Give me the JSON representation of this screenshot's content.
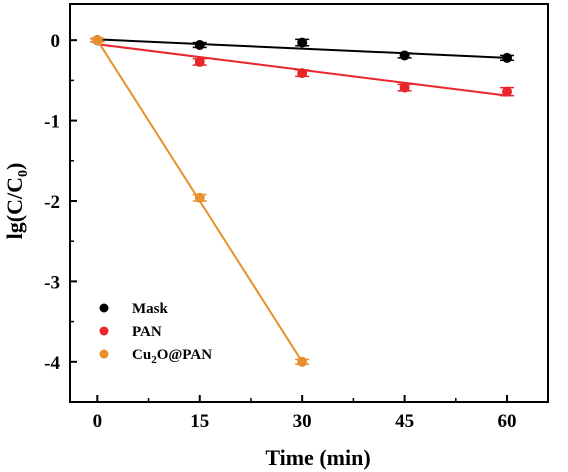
{
  "chart_data": {
    "type": "scatter",
    "xlabel": "Time (min)",
    "ylabel": "lg(C/C",
    "ylabel_sub": "0",
    "ylabel_close": ")",
    "xlim": [
      -4,
      66
    ],
    "ylim": [
      -4.5,
      0.45
    ],
    "x_ticks": [
      0,
      15,
      30,
      45,
      60
    ],
    "x_tick_labels": [
      "0",
      "15",
      "30",
      "45",
      "60"
    ],
    "y_ticks": [
      0,
      -1,
      -2,
      -3,
      -4
    ],
    "y_tick_labels": [
      "0",
      "-1",
      "-2",
      "-3",
      "-4"
    ],
    "legend_position": "lower-left",
    "grid": false,
    "series": [
      {
        "name": "Mask",
        "name_parts": [
          "Mask",
          "",
          ""
        ],
        "color": "#000000",
        "x": [
          0,
          15,
          30,
          45,
          60
        ],
        "y": [
          0,
          -0.06,
          -0.03,
          -0.19,
          -0.22
        ],
        "err": [
          0.02,
          0.03,
          0.04,
          0.03,
          0.03
        ],
        "fit": [
          [
            0,
            0.01
          ],
          [
            60,
            -0.22
          ]
        ]
      },
      {
        "name": "PAN",
        "name_parts": [
          "PAN",
          "",
          ""
        ],
        "color": "#e8262a",
        "x": [
          0,
          15,
          30,
          45,
          60
        ],
        "y": [
          0,
          -0.27,
          -0.41,
          -0.59,
          -0.64
        ],
        "err": [
          0.02,
          0.04,
          0.04,
          0.04,
          0.05
        ],
        "fit": [
          [
            0,
            -0.05
          ],
          [
            60,
            -0.69
          ]
        ]
      },
      {
        "name": "Cu2O@PAN",
        "name_parts": [
          "Cu",
          "2",
          "O@PAN"
        ],
        "color": "#e8902e",
        "x": [
          0,
          15,
          30
        ],
        "y": [
          0,
          -1.96,
          -4.0
        ],
        "err": [
          0.02,
          0.04,
          0.03
        ],
        "fit": [
          [
            0,
            0
          ],
          [
            30,
            -4.0
          ]
        ]
      }
    ]
  }
}
